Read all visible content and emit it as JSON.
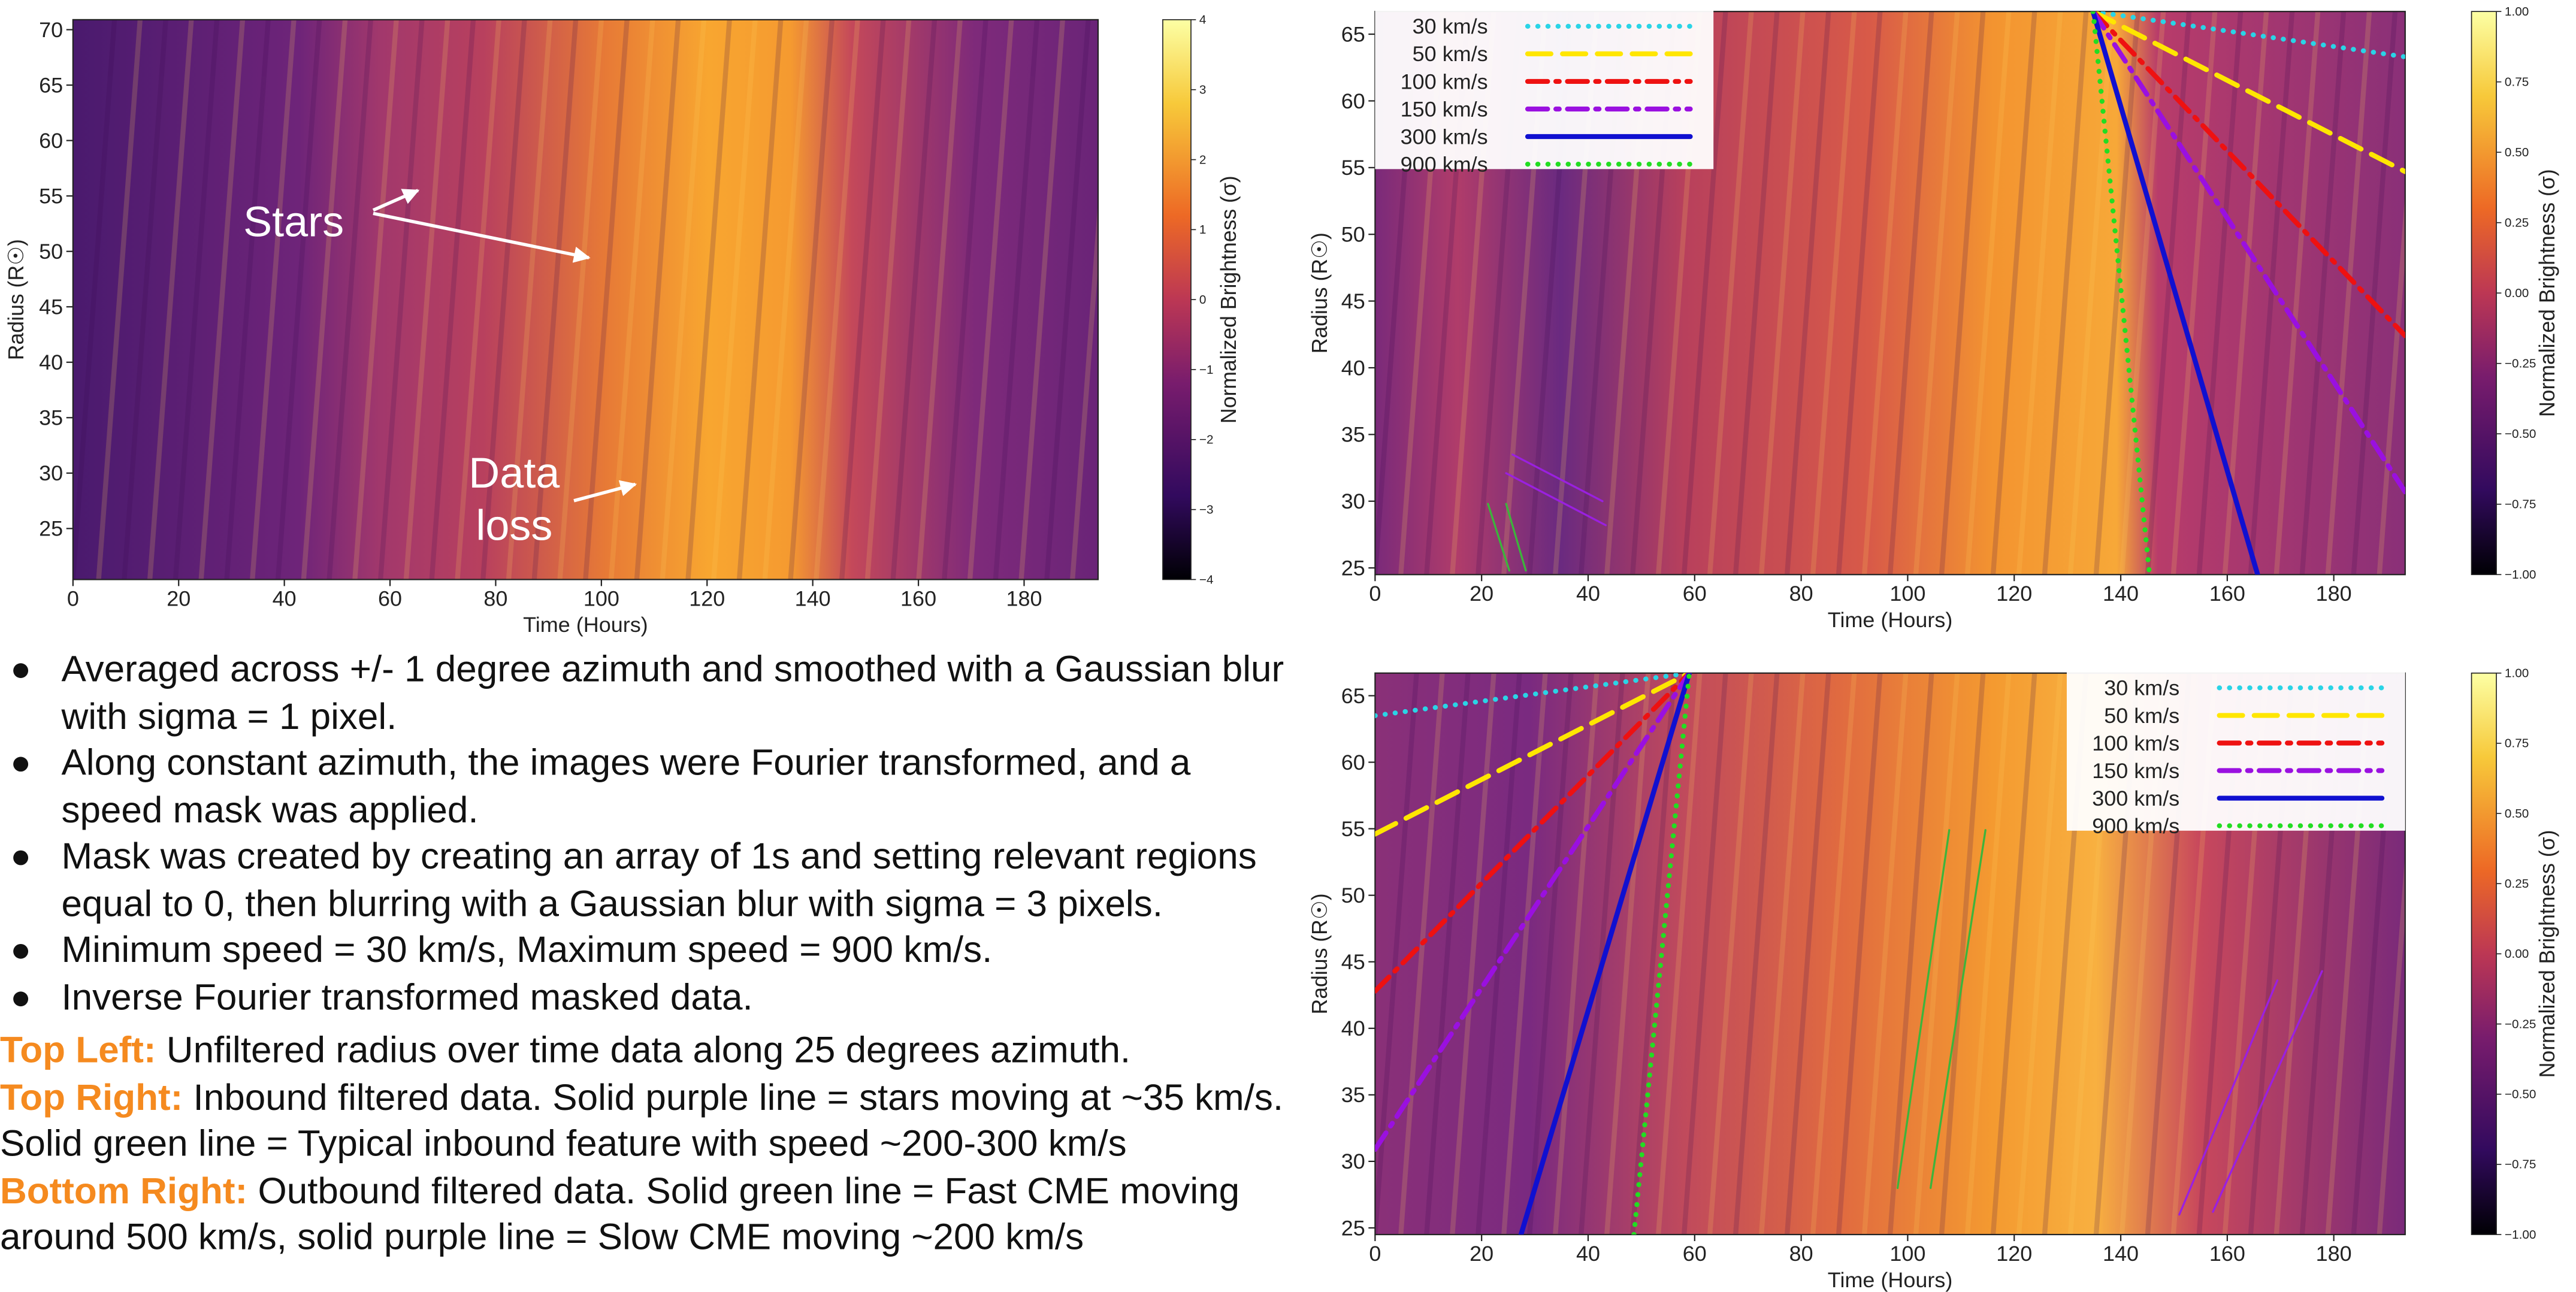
{
  "chart_data": [
    {
      "type": "heatmap",
      "xlabel": "Time (Hours)",
      "ylabel": "Radius (R☉)",
      "xlim": [
        0,
        194
      ],
      "ylim": [
        20.4,
        70.9
      ],
      "xticks": [
        0,
        20,
        40,
        60,
        80,
        100,
        120,
        140,
        160,
        180
      ],
      "yticks": [
        25,
        30,
        35,
        40,
        45,
        50,
        55,
        60,
        65,
        70
      ],
      "colorbar": {
        "label": "Normalized Brightness (σ)",
        "lim": [
          -4,
          4
        ],
        "ticks": [
          {
            "value": -4,
            "label": "−4"
          },
          {
            "value": -3,
            "label": "−3"
          },
          {
            "value": -2,
            "label": "−2"
          },
          {
            "value": -1,
            "label": "−1"
          },
          0,
          1,
          2,
          3,
          4
        ]
      },
      "annotations": [
        {
          "lines": [
            "Stars"
          ]
        },
        {
          "lines": [
            "Data",
            "loss"
          ]
        }
      ]
    },
    {
      "type": "heatmap",
      "xlabel": "Time (Hours)",
      "ylabel": "Radius (R☉)",
      "xlim": [
        0,
        193.4
      ],
      "ylim": [
        24.5,
        66.7
      ],
      "xticks": [
        0,
        20,
        40,
        60,
        80,
        100,
        120,
        140,
        160,
        180
      ],
      "yticks": [
        25,
        30,
        35,
        40,
        45,
        50,
        55,
        60,
        65
      ],
      "legend": "upper left",
      "series": [
        {
          "name": "30 km/s",
          "color": "#2ad4e6",
          "style": "dotted",
          "x": [
            134.8,
            193.4
          ],
          "values": [
            66.7,
            63.3
          ]
        },
        {
          "name": "50 km/s",
          "color": "#ffe600",
          "style": "dashed",
          "x": [
            134.8,
            193.4
          ],
          "values": [
            66.7,
            54.7
          ]
        },
        {
          "name": "100 km/s",
          "color": "#ee1111",
          "style": "dashdot",
          "x": [
            134.8,
            193.4
          ],
          "values": [
            66.7,
            42.4
          ]
        },
        {
          "name": "150 km/s",
          "color": "#9a10e0",
          "style": "dashdot",
          "x": [
            134.8,
            193.4
          ],
          "values": [
            66.7,
            30.7
          ]
        },
        {
          "name": "300 km/s",
          "color": "#1010d0",
          "style": "solid",
          "x": [
            134.8,
            165.7
          ],
          "values": [
            66.7,
            24.5
          ]
        },
        {
          "name": "900 km/s",
          "color": "#22dd22",
          "style": "dotted",
          "x": [
            134.8,
            145.4
          ],
          "values": [
            66.7,
            24.5
          ]
        }
      ],
      "feature_lines": [
        {
          "color": "#3cb43c",
          "x": [
            21.2,
            25.2
          ],
          "values": [
            29.8,
            24.8
          ]
        },
        {
          "color": "#3cb43c",
          "x": [
            24.6,
            28.3
          ],
          "values": [
            29.8,
            24.8
          ]
        },
        {
          "color": "#9a20e0",
          "x": [
            25.8,
            42.7
          ],
          "values": [
            33.5,
            30.0
          ]
        },
        {
          "color": "#9a20e0",
          "x": [
            24.6,
            43.3
          ],
          "values": [
            32.1,
            28.2
          ]
        }
      ],
      "colorbar": {
        "label": "Normalized Brightness (σ)",
        "lim": [
          -1,
          1
        ],
        "ticks": [
          {
            "value": -1,
            "label": "−1.00"
          },
          {
            "value": -0.75,
            "label": "−0.75"
          },
          {
            "value": -0.5,
            "label": "−0.50"
          },
          {
            "value": -0.25,
            "label": "−0.25"
          },
          {
            "value": 0,
            "label": "0.00"
          },
          {
            "value": 0.25,
            "label": "0.25"
          },
          {
            "value": 0.5,
            "label": "0.50"
          },
          {
            "value": 0.75,
            "label": "0.75"
          },
          {
            "value": 1,
            "label": "1.00"
          }
        ]
      }
    },
    {
      "type": "heatmap",
      "xlabel": "Time (Hours)",
      "ylabel": "Radius (R☉)",
      "xlim": [
        0,
        193.4
      ],
      "ylim": [
        24.5,
        66.7
      ],
      "xticks": [
        0,
        20,
        40,
        60,
        80,
        100,
        120,
        140,
        160,
        180
      ],
      "yticks": [
        25,
        30,
        35,
        40,
        45,
        50,
        55,
        60,
        65
      ],
      "legend": "upper right",
      "series": [
        {
          "name": "30 km/s",
          "color": "#2ad4e6",
          "style": "dotted",
          "x": [
            0,
            59
          ],
          "values": [
            63.5,
            66.7
          ]
        },
        {
          "name": "50 km/s",
          "color": "#ffe600",
          "style": "dashed",
          "x": [
            0,
            59
          ],
          "values": [
            54.6,
            66.7
          ]
        },
        {
          "name": "100 km/s",
          "color": "#ee1111",
          "style": "dashdot",
          "x": [
            0,
            59
          ],
          "values": [
            42.8,
            66.7
          ]
        },
        {
          "name": "150 km/s",
          "color": "#9a10e0",
          "style": "dashdot",
          "x": [
            0,
            59
          ],
          "values": [
            30.9,
            66.7
          ]
        },
        {
          "name": "300 km/s",
          "color": "#1010d0",
          "style": "solid",
          "x": [
            27.4,
            59
          ],
          "values": [
            24.5,
            66.7
          ]
        },
        {
          "name": "900 km/s",
          "color": "#22dd22",
          "style": "dotted",
          "x": [
            48.6,
            59
          ],
          "values": [
            24.5,
            66.7
          ]
        }
      ],
      "feature_lines": [
        {
          "color": "#3cb43c",
          "x": [
            98.1,
            107.8
          ],
          "values": [
            28.0,
            54.9
          ]
        },
        {
          "color": "#3cb43c",
          "x": [
            104.3,
            114.6
          ],
          "values": [
            28.0,
            54.9
          ]
        },
        {
          "color": "#9a20e0",
          "x": [
            151.0,
            169.4
          ],
          "values": [
            26.0,
            43.6
          ]
        },
        {
          "color": "#9a20e0",
          "x": [
            157.3,
            177.8
          ],
          "values": [
            26.2,
            44.3
          ]
        }
      ],
      "colorbar": {
        "label": "Normalized Brightness (σ)",
        "lim": [
          -1,
          1
        ],
        "ticks": [
          {
            "value": -1,
            "label": "−1.00"
          },
          {
            "value": -0.75,
            "label": "−0.75"
          },
          {
            "value": -0.5,
            "label": "−0.50"
          },
          {
            "value": -0.25,
            "label": "−0.25"
          },
          {
            "value": 0,
            "label": "0.00"
          },
          {
            "value": 0.25,
            "label": "0.25"
          },
          {
            "value": 0.5,
            "label": "0.50"
          },
          {
            "value": 0.75,
            "label": "0.75"
          },
          {
            "value": 1,
            "label": "1.00"
          }
        ]
      }
    }
  ],
  "notes": {
    "bullets": [
      "Averaged across +/- 1 degree azimuth and smoothed with a Gaussian blur with sigma = 1 pixel.",
      "Along constant azimuth, the images were Fourier transformed, and a speed mask was applied.",
      "Mask was created by creating an array of 1s and setting relevant regions equal to 0, then blurring with a Gaussian blur with sigma = 3 pixels.",
      "Minimum speed = 30 km/s, Maximum speed = 900 km/s.",
      "Inverse Fourier transformed masked data."
    ],
    "captions": [
      {
        "label": "Top Left:",
        "text": "Unfiltered radius over time data along 25 degrees azimuth."
      },
      {
        "label": "Top Right:",
        "text": "Inbound filtered data. Solid purple line = stars moving at ~35 km/s. Solid green line = Typical inbound feature with speed ~200-300 km/s"
      },
      {
        "label": "Bottom Right:",
        "text": "Outbound filtered data. Solid green line = Fast CME moving around 500 km/s, solid purple line = Slow CME moving ~200 km/s"
      }
    ]
  }
}
